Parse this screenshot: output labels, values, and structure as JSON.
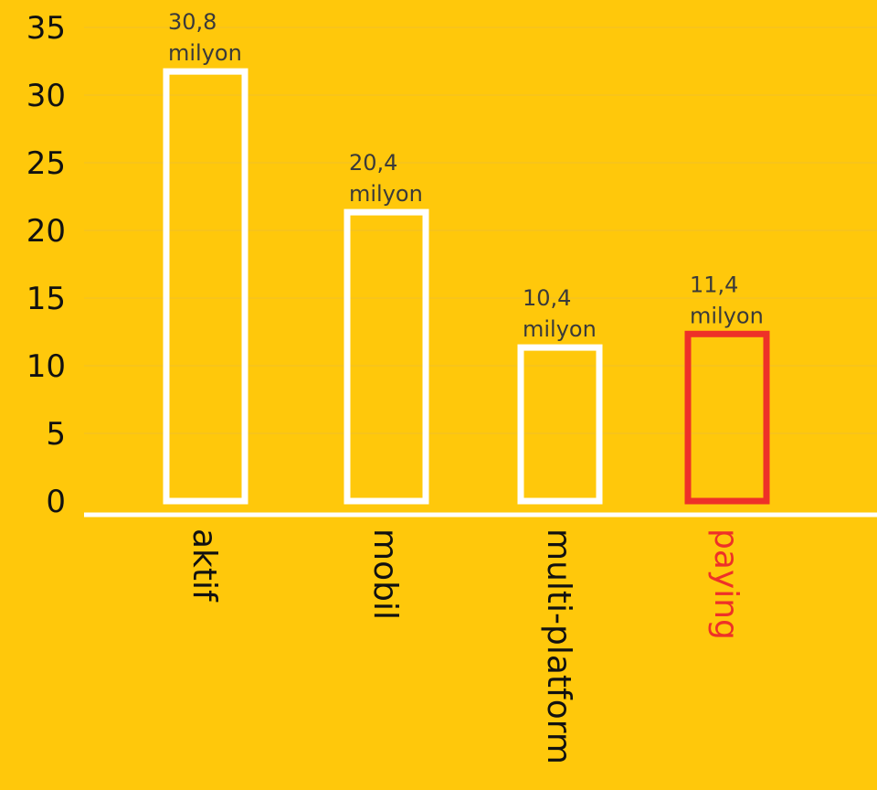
{
  "chart_data": {
    "type": "bar",
    "categories": [
      "aktif",
      "mobil",
      "multi-platform",
      "paying"
    ],
    "values": [
      30.8,
      20.4,
      10.4,
      11.4
    ],
    "value_labels": [
      [
        "30,8",
        "milyon"
      ],
      [
        "20,4",
        "milyon"
      ],
      [
        "10,4",
        "milyon"
      ],
      [
        "11,4",
        "milyon"
      ]
    ],
    "title": "",
    "xlabel": "",
    "ylabel": "",
    "ylim": [
      0,
      35
    ],
    "yticks": [
      "0",
      "5",
      "10",
      "15",
      "20",
      "25",
      "30",
      "35"
    ],
    "grid": true,
    "highlight_category": "paying",
    "colors": {
      "background": "#FFC80B",
      "bar_outline": "#FFFFFF",
      "highlight": "#EE3128",
      "axis": "#FFFFFF",
      "grid": "#F0C12A",
      "text": "#111111",
      "value_label": "#3A3A3A"
    }
  }
}
